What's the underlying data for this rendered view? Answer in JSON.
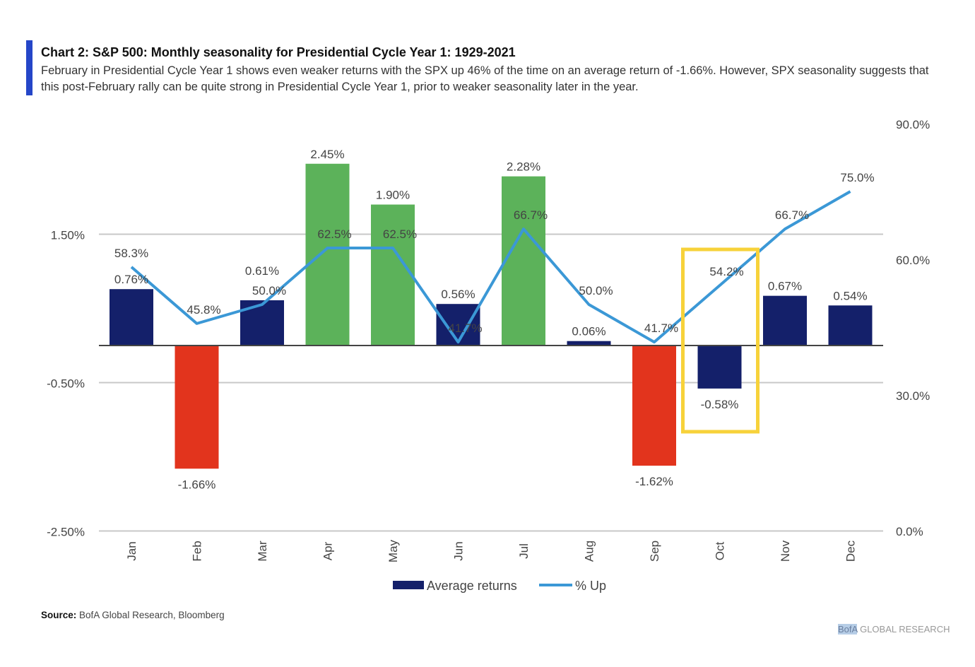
{
  "header": {
    "title": "Chart 2: S&P 500: Monthly seasonality for Presidential Cycle Year 1: 1929-2021",
    "subtitle": "February in Presidential Cycle Year 1 shows even weaker returns with the SPX up 46% of the time on an average return of -1.66%. However, SPX seasonality suggests that this post-February rally can be quite strong in Presidential Cycle Year 1, prior to weaker seasonality later in the year."
  },
  "footer": {
    "source_label": "Source:",
    "source_text": " BofA Global Research, Bloomberg",
    "brand_logo": "BofA",
    "brand_text": " GLOBAL RESEARCH"
  },
  "chart_data": {
    "type": "bar+line",
    "categories": [
      "Jan",
      "Feb",
      "Mar",
      "Apr",
      "May",
      "Jun",
      "Jul",
      "Aug",
      "Sep",
      "Oct",
      "Nov",
      "Dec"
    ],
    "series": [
      {
        "name": "Average returns",
        "type": "bar",
        "axis": "left",
        "values": [
          0.76,
          -1.66,
          0.61,
          2.45,
          1.9,
          0.56,
          2.28,
          0.06,
          -1.62,
          -0.58,
          0.67,
          0.54
        ],
        "labels": [
          "0.76%",
          "-1.66%",
          "0.61%",
          "2.45%",
          "1.90%",
          "0.56%",
          "2.28%",
          "0.06%",
          "-1.62%",
          "-0.58%",
          "0.67%",
          "0.54%"
        ],
        "bar_colors": [
          "#14206a",
          "#e2341d",
          "#14206a",
          "#5cb25a",
          "#5cb25a",
          "#14206a",
          "#5cb25a",
          "#14206a",
          "#e2341d",
          "#14206a",
          "#14206a",
          "#14206a"
        ]
      },
      {
        "name": "% Up",
        "type": "line",
        "axis": "right",
        "color": "#3b98d6",
        "values": [
          58.3,
          45.8,
          50.0,
          62.5,
          62.5,
          41.7,
          66.7,
          50.0,
          41.7,
          54.2,
          66.7,
          75.0
        ],
        "labels": [
          "58.3%",
          "45.8%",
          "50.0%",
          "62.5%",
          "62.5%",
          "41.7%",
          "66.7%",
          "50.0%",
          "41.7%",
          "54.2%",
          "66.7%",
          "75.0%"
        ]
      }
    ],
    "left_axis": {
      "ticks": [
        1.5,
        -0.5,
        -2.5
      ],
      "tick_labels": [
        "1.50%",
        "-0.50%",
        "-2.50%"
      ],
      "range": [
        -2.5,
        3.5
      ]
    },
    "right_axis": {
      "ticks": [
        90,
        60,
        30,
        0
      ],
      "tick_labels": [
        "90.0%",
        "60.0%",
        "30.0%",
        "0.0%"
      ],
      "range": [
        0,
        90
      ]
    },
    "legend": {
      "placement": "bottom",
      "items": [
        "Average returns",
        "% Up"
      ]
    },
    "highlight": {
      "category": "Oct",
      "color": "#f7d23a"
    }
  }
}
